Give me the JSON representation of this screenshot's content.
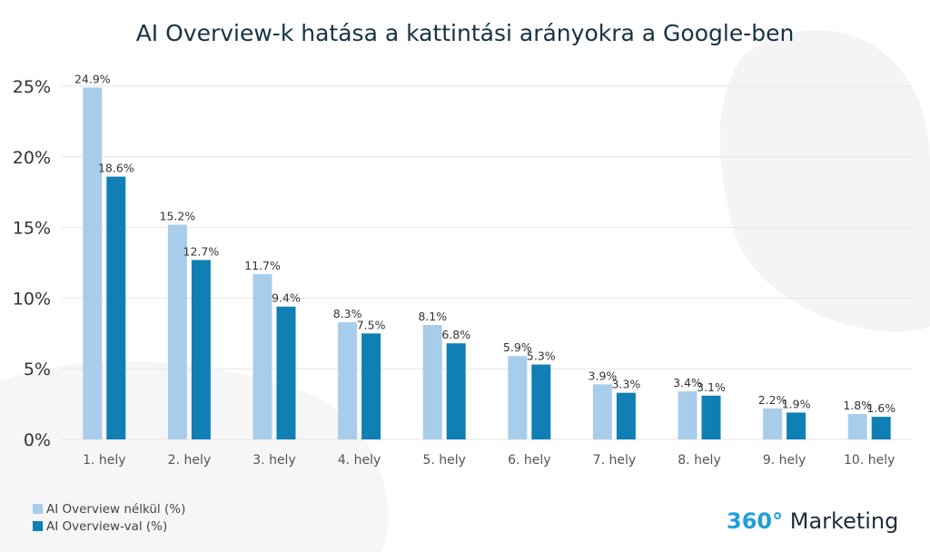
{
  "colors": {
    "series1": "#a8cdeb",
    "series2": "#0f7fb4",
    "grid": "#e6e6e6",
    "text": "#333333",
    "title": "#163345",
    "brand_accent": "#1fa0dc"
  },
  "chart_data": {
    "type": "bar",
    "title": "AI Overview-k hatása a kattintási arányokra a Google-ben",
    "xlabel": "",
    "ylabel": "",
    "categories": [
      "1. hely",
      "2. hely",
      "3. hely",
      "4. hely",
      "5. hely",
      "6. hely",
      "7. hely",
      "8. hely",
      "9. hely",
      "10. hely"
    ],
    "series": [
      {
        "name": "AI Overview nélkül (%)",
        "values": [
          24.9,
          15.2,
          11.7,
          8.3,
          8.1,
          5.9,
          3.9,
          3.4,
          2.2,
          1.8
        ]
      },
      {
        "name": "AI Overview-val (%)",
        "values": [
          18.6,
          12.7,
          9.4,
          7.5,
          6.8,
          5.3,
          3.3,
          3.1,
          1.9,
          1.6
        ]
      }
    ],
    "ylim": [
      0,
      25
    ],
    "yticks": [
      0,
      5,
      10,
      15,
      20,
      25
    ],
    "ytick_labels": [
      "0%",
      "5%",
      "10%",
      "15%",
      "20%",
      "25%"
    ],
    "data_labels": [
      [
        "24.9%",
        "15.2%",
        "11.7%",
        "8.3%",
        "8.1%",
        "5.9%",
        "3.9%",
        "3.4%",
        "2.2%",
        "1.8%"
      ],
      [
        "18.6%",
        "12.7%",
        "9.4%",
        "7.5%",
        "6.8%",
        "5.3%",
        "3.3%",
        "3.1%",
        "1.9%",
        "1.6%"
      ]
    ],
    "grid": true,
    "legend_position": "bottom-left"
  },
  "brand": {
    "number": "360°",
    "name": "Marketing"
  }
}
